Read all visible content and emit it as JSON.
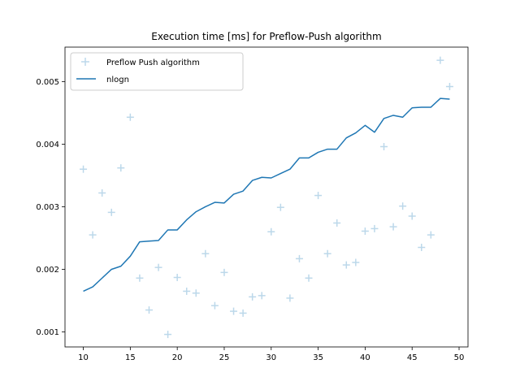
{
  "chart_data": {
    "type": "scatter",
    "title": "Execution time [ms] for Preflow-Push algorithm",
    "xlabel": "",
    "ylabel": "",
    "xlim": [
      8.05,
      50.95
    ],
    "ylim": [
      0.00076,
      0.00555
    ],
    "xticks": [
      10,
      15,
      20,
      25,
      30,
      35,
      40,
      45,
      50
    ],
    "xtick_labels": [
      "10",
      "15",
      "20",
      "25",
      "30",
      "35",
      "40",
      "45",
      "50"
    ],
    "yticks": [
      0.001,
      0.002,
      0.003,
      0.004,
      0.005
    ],
    "ytick_labels": [
      "0.001",
      "0.002",
      "0.003",
      "0.004",
      "0.005"
    ],
    "legend_position": "upper-left",
    "series": [
      {
        "name": "Preflow Push algorithm",
        "kind": "scatter",
        "marker": "+",
        "color": "#bcd8ea",
        "x": [
          10,
          11,
          12,
          13,
          14,
          15,
          16,
          17,
          18,
          19,
          20,
          21,
          22,
          23,
          24,
          25,
          26,
          27,
          28,
          29,
          30,
          31,
          32,
          33,
          34,
          35,
          36,
          37,
          38,
          39,
          40,
          41,
          42,
          43,
          44,
          45,
          46,
          47,
          48,
          49
        ],
        "y": [
          0.0036,
          0.00255,
          0.00322,
          0.00291,
          0.00362,
          0.00443,
          0.00186,
          0.00135,
          0.00203,
          0.00096,
          0.00187,
          0.00165,
          0.00162,
          0.00225,
          0.00142,
          0.00195,
          0.00133,
          0.0013,
          0.00156,
          0.00158,
          0.0026,
          0.00299,
          0.00154,
          0.00217,
          0.00186,
          0.00318,
          0.00225,
          0.00274,
          0.00207,
          0.00211,
          0.00261,
          0.00265,
          0.00396,
          0.00268,
          0.00301,
          0.00285,
          0.00235,
          0.00255,
          0.00534,
          0.00492
        ]
      },
      {
        "name": "nlogn",
        "kind": "line",
        "color": "#1f77b4",
        "x": [
          10,
          11,
          12,
          13,
          14,
          15,
          16,
          17,
          18,
          19,
          20,
          21,
          22,
          23,
          24,
          25,
          26,
          27,
          28,
          29,
          30,
          31,
          32,
          33,
          34,
          35,
          36,
          37,
          38,
          39,
          40,
          41,
          42,
          43,
          44,
          45,
          46,
          47,
          48,
          49
        ],
        "y": [
          0.00165,
          0.00172,
          0.00186,
          0.002,
          0.00205,
          0.00221,
          0.00244,
          0.00245,
          0.00246,
          0.00263,
          0.00263,
          0.00279,
          0.00292,
          0.003,
          0.00307,
          0.00306,
          0.0032,
          0.00325,
          0.00342,
          0.00347,
          0.00346,
          0.00353,
          0.0036,
          0.00378,
          0.00378,
          0.00387,
          0.00392,
          0.00392,
          0.0041,
          0.00418,
          0.0043,
          0.00419,
          0.00441,
          0.00446,
          0.00443,
          0.00458,
          0.00459,
          0.00459,
          0.00473,
          0.00472
        ]
      }
    ]
  }
}
